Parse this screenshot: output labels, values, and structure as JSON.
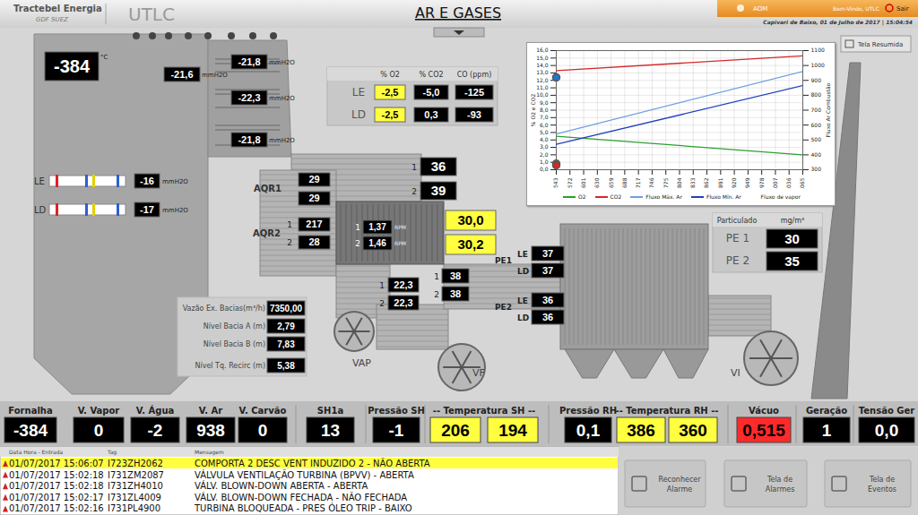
{
  "header": {
    "company": "Tractebel Energia",
    "group": "GDF SUEZ",
    "plant": "UTLC",
    "title": "AR E GASES",
    "user_button": "AOM",
    "welcome": "Bem-Vindo, UTLC",
    "exit": "Sair",
    "location_date": "Capivari de Baixo, 01 de Julho de 2017 | 15:04:54",
    "summary_button": "Tela Resumida"
  },
  "diagram": {
    "furnace_temp": {
      "value": "-384",
      "unit": "°C"
    },
    "furnace_pressures": [
      "-21,6",
      "-21,8",
      "-22,3",
      "-21,8"
    ],
    "pressure_unit": "mmH2O",
    "burners": [
      {
        "label": "LE",
        "value": "-16"
      },
      {
        "label": "LD",
        "value": "-17"
      }
    ],
    "gas_analysis": {
      "headers": [
        "% O2",
        "% CO2",
        "CO (ppm)"
      ],
      "rows": [
        {
          "label": "LE",
          "values": [
            "-2,5",
            "-5,0",
            "-125"
          ]
        },
        {
          "label": "LD",
          "values": [
            "-2,5",
            "0,3",
            "-93"
          ]
        }
      ],
      "highlight": {
        "column": "% O2",
        "color": "#ffff40"
      }
    },
    "index_labels": [
      "1",
      "2"
    ],
    "aqr1": {
      "label": "AQR1",
      "values": [
        "29",
        "29"
      ]
    },
    "aqr2": {
      "label": "AQR2",
      "values": [
        "217",
        "28"
      ]
    },
    "gas_out": [
      "36",
      "39"
    ],
    "rpm": {
      "unit": "RPM",
      "values": [
        "1,37",
        "1,46"
      ]
    },
    "rpm_setpoints": {
      "values": [
        "30,0",
        "30,2"
      ],
      "color": "#ffff40"
    },
    "air_mid": [
      "22,3",
      "22,3"
    ],
    "air_right": [
      "38",
      "38"
    ],
    "pe1": {
      "label": "PE1",
      "rows": [
        {
          "side": "LE",
          "value": "37"
        },
        {
          "side": "LD",
          "value": "37"
        }
      ]
    },
    "pe2": {
      "label": "PE2",
      "rows": [
        {
          "side": "LE",
          "value": "36"
        },
        {
          "side": "LD",
          "value": "36"
        }
      ]
    },
    "fans": [
      "VAP",
      "VF",
      "VI"
    ],
    "basin": [
      {
        "label": "Vazão Ex. Bacias(m³/h)",
        "value": "7350,00"
      },
      {
        "label": "Nível Bacia A (m)",
        "value": "2,79"
      },
      {
        "label": "Nível Bacia B (m)",
        "value": "7,83"
      },
      {
        "label": "Nível Tq. Recirc (m)",
        "value": "5,38"
      }
    ],
    "particulate": {
      "header": "Particulado",
      "unit": "mg/m³",
      "rows": [
        {
          "label": "PE 1",
          "value": "30"
        },
        {
          "label": "PE 2",
          "value": "35"
        }
      ]
    }
  },
  "chart_data": {
    "type": "line",
    "x_label": "Fluxo de vapor",
    "y_label": "% O2 e CO2",
    "y2_label": "Fluxo Ar Combustão",
    "x": [
      543,
      1065
    ],
    "xlim": [
      543,
      1065
    ],
    "xticks": [
      543,
      572,
      601,
      630,
      659,
      688,
      717,
      746,
      775,
      804,
      833,
      862,
      891,
      920,
      949,
      978,
      1007,
      1036,
      1065
    ],
    "ylim": [
      0,
      16
    ],
    "yticks": [
      {
        "value": 0,
        "label": "0,0"
      },
      {
        "value": 1,
        "label": "1,0"
      },
      {
        "value": 2,
        "label": "2,0"
      },
      {
        "value": 3,
        "label": "3,0"
      },
      {
        "value": 4,
        "label": "4,0"
      },
      {
        "value": 5,
        "label": "5,0"
      },
      {
        "value": 6,
        "label": "6,0"
      },
      {
        "value": 7,
        "label": "7,0"
      },
      {
        "value": 8,
        "label": "8,0"
      },
      {
        "value": 9,
        "label": "9,0"
      },
      {
        "value": 10,
        "label": "10,0"
      },
      {
        "value": 11,
        "label": "11,0"
      },
      {
        "value": 12,
        "label": "12,0"
      },
      {
        "value": 13,
        "label": "13,0"
      },
      {
        "value": 14,
        "label": "14,0"
      },
      {
        "value": 15,
        "label": "15,0"
      },
      {
        "value": 16,
        "label": "16,0"
      }
    ],
    "y2lim": [
      300,
      1100
    ],
    "y2ticks": [
      300,
      400,
      500,
      600,
      700,
      800,
      900,
      1000,
      1100
    ],
    "grid": true,
    "legend": "bottom",
    "series": [
      {
        "name": "O2",
        "color": "#2ca02c",
        "values": [
          4.5,
          2.0
        ]
      },
      {
        "name": "CO2",
        "color": "#d62728",
        "values": [
          13.3,
          15.3
        ]
      },
      {
        "name": "Fluxo Máx. Ar",
        "color": "#6f9fe0",
        "axis": "y2",
        "values": [
          540,
          960
        ]
      },
      {
        "name": "Fluxo Mín. Ar",
        "color": "#1f3fbf",
        "axis": "y2",
        "values": [
          470,
          865
        ]
      }
    ],
    "current_points": [
      {
        "x": 543,
        "y": 12.4,
        "color": "#1f77d0"
      },
      {
        "x": 543,
        "y": 0.8,
        "color": "#2ca02c"
      },
      {
        "x": 543,
        "y": 0.6,
        "color": "#d62728"
      }
    ]
  },
  "status_bar": [
    {
      "label": "Fornalha",
      "values": [
        "-384"
      ]
    },
    {
      "label": "V. Vapor",
      "values": [
        "0"
      ]
    },
    {
      "label": "V. Água",
      "values": [
        "-2"
      ]
    },
    {
      "label": "V. Ar",
      "values": [
        "938"
      ]
    },
    {
      "label": "V. Carvão",
      "values": [
        "0"
      ]
    },
    {
      "label": "SH1a",
      "values": [
        "13"
      ]
    },
    {
      "label": "Pressão SH",
      "values": [
        "-1"
      ]
    },
    {
      "label": "-- Temperatura SH --",
      "values": [
        "206",
        "194"
      ],
      "color": "#ffff40"
    },
    {
      "label": "Pressão RH",
      "values": [
        "0,1"
      ]
    },
    {
      "label": "-- Temperatura RH --",
      "values": [
        "386",
        "360"
      ],
      "color": "#ffff40"
    },
    {
      "label": "Vácuo",
      "values": [
        "0,515"
      ],
      "color": "#ff2a2a"
    },
    {
      "label": "Geração",
      "values": [
        "1"
      ]
    },
    {
      "label": "Tensão Ger",
      "values": [
        "0,0"
      ]
    }
  ],
  "alarms": {
    "headers": [
      "Data Hora - Entrada",
      "Tag",
      "Mensagem"
    ],
    "highlight_color": "#ffff40",
    "rows": [
      [
        "01/07/2017 15:06:07",
        "I723ZH2062",
        "COMPORTA 2 DESC VENT INDUZIDO 2 - NÃO ABERTA"
      ],
      [
        "01/07/2017 15:02:18",
        "I731ZM2087",
        "VÁLVULA VENTILAÇÃO TURBINA (BPVV) - ABERTA"
      ],
      [
        "01/07/2017 15:02:18",
        "I731ZH4010",
        "VÁLV. BLOWN-DOWN ABERTA - ABERTA"
      ],
      [
        "01/07/2017 15:02:17",
        "I731ZL4009",
        "VÁLV. BLOWN-DOWN FECHADA - NÃO FECHADA"
      ],
      [
        "01/07/2017 15:02:16",
        "I731PL4900",
        "TURBINA BLOQUEADA - PRES ÓLEO TRIP - BAIXO"
      ]
    ]
  },
  "buttons": [
    [
      "Reconhecer",
      "Alarme"
    ],
    [
      "Tela de",
      "Alarmes"
    ],
    [
      "Tela de",
      "Eventos"
    ]
  ]
}
